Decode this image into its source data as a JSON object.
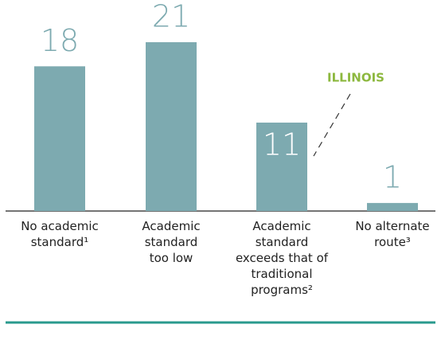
{
  "chart_data": {
    "type": "bar",
    "categories": [
      "No academic standard¹",
      "Academic standard too low",
      "Academic standard exceeds that of traditional programs²",
      "No alternate route³"
    ],
    "values": [
      18,
      21,
      11,
      1
    ],
    "color": "#7daab0",
    "annotation": "ILLINOIS"
  }
}
